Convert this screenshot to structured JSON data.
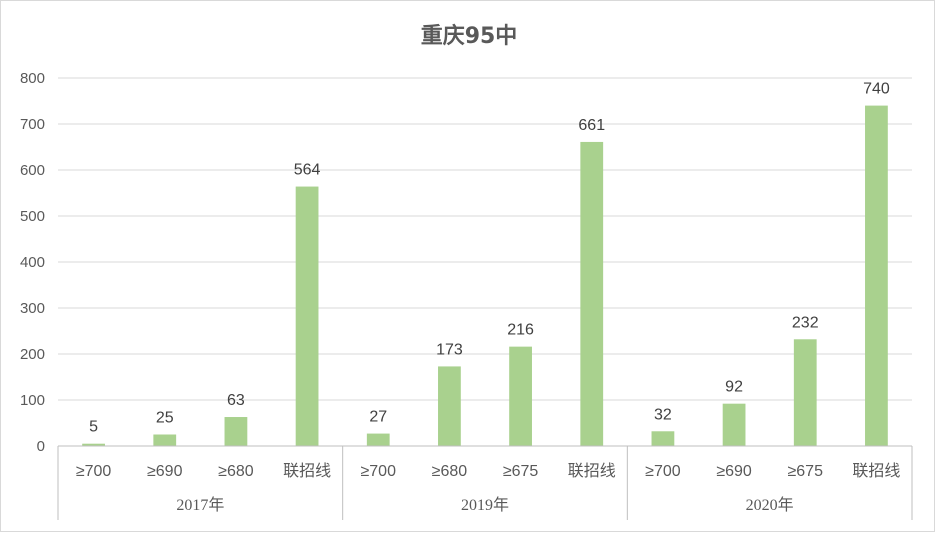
{
  "chart_data": {
    "type": "bar",
    "title": "重庆95中",
    "ylim": [
      0,
      800
    ],
    "yticks": [
      "0",
      "100",
      "200",
      "300",
      "400",
      "500",
      "600",
      "700",
      "800"
    ],
    "grid": true,
    "bar_color": "#a9d18e",
    "groups": [
      {
        "label": "2017年",
        "categories": [
          "≥700",
          "≥690",
          "≥680",
          "联招线"
        ],
        "values": [
          5,
          25,
          63,
          564
        ]
      },
      {
        "label": "2019年",
        "categories": [
          "≥700",
          "≥680",
          "≥675",
          "联招线"
        ],
        "values": [
          27,
          173,
          216,
          661
        ]
      },
      {
        "label": "2020年",
        "categories": [
          "≥700",
          "≥690",
          "≥675",
          "联招线"
        ],
        "values": [
          32,
          92,
          232,
          740
        ]
      }
    ]
  }
}
